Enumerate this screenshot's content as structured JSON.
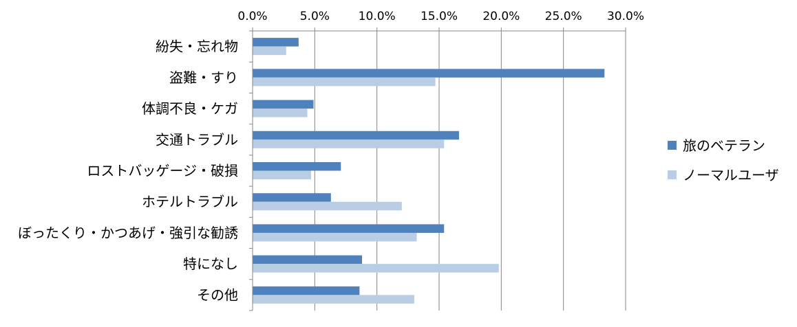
{
  "chart_data": {
    "type": "bar",
    "orientation": "horizontal",
    "title": "",
    "xlabel": "",
    "ylabel": "",
    "xlim": [
      0,
      30
    ],
    "x_ticks": [
      "0.0%",
      "5.0%",
      "10.0%",
      "15.0%",
      "20.0%",
      "25.0%",
      "30.0%"
    ],
    "x_axis_position": "top",
    "grid": true,
    "legend_position": "right",
    "categories": [
      "紛失・忘れ物",
      "盗難・すり",
      "体調不良・ケガ",
      "交通トラブル",
      "ロストバッゲージ・破損",
      "ホテルトラブル",
      "ぼったくり・かつあげ・強引な勧誘",
      "特になし",
      "その他"
    ],
    "series": [
      {
        "name": "旅のベテラン",
        "color": "#4F81BD",
        "values": [
          3.7,
          28.3,
          4.9,
          16.6,
          7.1,
          6.3,
          15.4,
          8.8,
          8.6
        ]
      },
      {
        "name": "ノーマルユーザ",
        "color": "#B9CDE5",
        "values": [
          2.7,
          14.7,
          4.4,
          15.4,
          4.7,
          12.0,
          13.2,
          19.8,
          13.0
        ]
      }
    ]
  }
}
